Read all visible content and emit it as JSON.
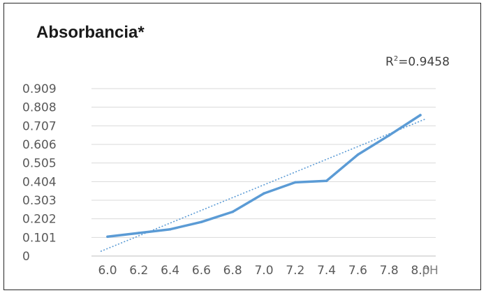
{
  "chart_data": {
    "type": "line",
    "title": "Absorbancia*",
    "xlabel": "pH",
    "ylabel": "",
    "x": [
      "6.0",
      "6.2",
      "6.4",
      "6.6",
      "6.8",
      "7.0",
      "7.2",
      "7.4",
      "7.6",
      "7.8",
      "8.0"
    ],
    "y_ticks": [
      "0",
      "0.101",
      "0.202",
      "0.303",
      "0.404",
      "0.505",
      "0.606",
      "0.707",
      "0.808",
      "0.909"
    ],
    "ylim": [
      0,
      0.909
    ],
    "grid": true,
    "series": [
      {
        "values": [
          0.105,
          0.125,
          0.145,
          0.185,
          0.24,
          0.34,
          0.4,
          0.408,
          0.55,
          0.655,
          0.765
        ],
        "color": "#5b9bd5"
      }
    ],
    "trendline": {
      "type": "linear",
      "start": 0.025,
      "end": 0.745,
      "color": "#5b9bd5",
      "label": {
        "prefix": "R",
        "superscript": "2",
        "value": "=0.9458"
      }
    }
  }
}
